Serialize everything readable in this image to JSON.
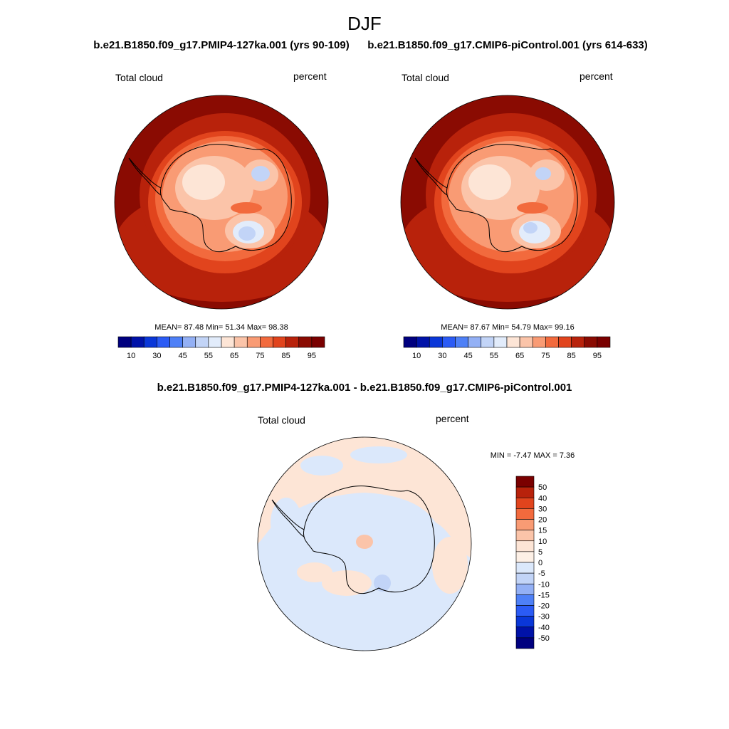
{
  "figure": {
    "season_title": "DJF"
  },
  "panels": [
    {
      "id": "left",
      "case_title": "b.e21.B1850.f09_g17.PMIP4-127ka.001 (yrs 90-109)",
      "variable": "Total cloud",
      "units": "percent",
      "stats_text": "MEAN=  87.48  Min=  51.34  Max=  98.38"
    },
    {
      "id": "right",
      "case_title": "b.e21.B1850.f09_g17.CMIP6-piControl.001 (yrs 614-633)",
      "variable": "Total cloud",
      "units": "percent",
      "stats_text": "MEAN=  87.67  Min=  54.79  Max=  99.16"
    },
    {
      "id": "diff",
      "case_title": "b.e21.B1850.f09_g17.PMIP4-127ka.001 - b.e21.B1850.f09_g17.CMIP6-piControl.001",
      "variable": "Total cloud",
      "units": "percent",
      "stats_text": "MIN =  -7.47 MAX =   7.36"
    }
  ],
  "chart_data": [
    {
      "type": "heatmap",
      "projection": "south-polar stereographic",
      "title": "b.e21.B1850.f09_g17.PMIP4-127ka.001 (yrs 90-109)",
      "variable": "Total cloud",
      "units": "percent",
      "mean": 87.48,
      "min": 51.34,
      "max": 98.38,
      "colorbar": {
        "orientation": "horizontal",
        "levels": [
          10,
          20,
          30,
          40,
          45,
          50,
          55,
          60,
          65,
          70,
          75,
          80,
          85,
          90,
          95
        ],
        "tick_labels": [
          "10",
          "30",
          "45",
          "55",
          "65",
          "75",
          "85",
          "95"
        ],
        "colors": [
          "#00007f",
          "#0012a8",
          "#0a37d8",
          "#2b5bf5",
          "#4e80f7",
          "#93b0f5",
          "#c2d4f7",
          "#e2ecfb",
          "#fde5d6",
          "#fbc4a9",
          "#f99b74",
          "#f26a3d",
          "#e1441d",
          "#b8220b",
          "#8a0b02",
          "#7a0000"
        ]
      }
    },
    {
      "type": "heatmap",
      "projection": "south-polar stereographic",
      "title": "b.e21.B1850.f09_g17.CMIP6-piControl.001 (yrs 614-633)",
      "variable": "Total cloud",
      "units": "percent",
      "mean": 87.67,
      "min": 54.79,
      "max": 99.16,
      "colorbar": {
        "orientation": "horizontal",
        "levels": [
          10,
          20,
          30,
          40,
          45,
          50,
          55,
          60,
          65,
          70,
          75,
          80,
          85,
          90,
          95
        ],
        "tick_labels": [
          "10",
          "30",
          "45",
          "55",
          "65",
          "75",
          "85",
          "95"
        ],
        "colors": [
          "#00007f",
          "#0012a8",
          "#0a37d8",
          "#2b5bf5",
          "#4e80f7",
          "#93b0f5",
          "#c2d4f7",
          "#e2ecfb",
          "#fde5d6",
          "#fbc4a9",
          "#f99b74",
          "#f26a3d",
          "#e1441d",
          "#b8220b",
          "#8a0b02",
          "#7a0000"
        ]
      }
    },
    {
      "type": "heatmap",
      "projection": "south-polar stereographic",
      "title": "b.e21.B1850.f09_g17.PMIP4-127ka.001 - b.e21.B1850.f09_g17.CMIP6-piControl.001",
      "variable": "Total cloud",
      "units": "percent",
      "min": -7.47,
      "max": 7.36,
      "colorbar": {
        "orientation": "vertical",
        "levels": [
          50,
          40,
          30,
          20,
          15,
          10,
          5,
          0,
          -5,
          -10,
          -15,
          -20,
          -30,
          -40,
          -50
        ],
        "tick_labels": [
          "50",
          "40",
          "30",
          "20",
          "15",
          "10",
          "5",
          "0",
          "-5",
          "-10",
          "-15",
          "-20",
          "-30",
          "-40",
          "-50"
        ],
        "colors": [
          "#7a0000",
          "#b8220b",
          "#e1441d",
          "#f26a3d",
          "#f99b74",
          "#fbc4a9",
          "#fde5d6",
          "#fdf0e6",
          "#dbe8fb",
          "#c2d4f7",
          "#93b0f5",
          "#4e80f7",
          "#2b5bf5",
          "#0a37d8",
          "#0012a8",
          "#00007f"
        ]
      }
    }
  ]
}
